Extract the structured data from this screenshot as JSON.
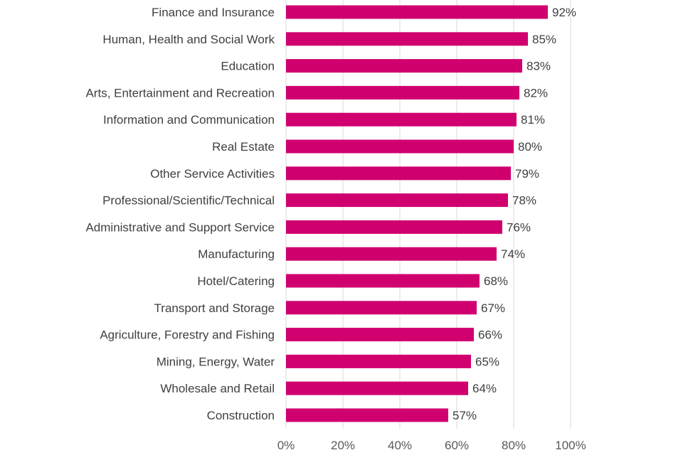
{
  "chart_data": {
    "type": "bar",
    "orientation": "horizontal",
    "categories": [
      "Finance and Insurance",
      "Human, Health and Social Work",
      "Education",
      "Arts, Entertainment and Recreation",
      "Information and Communication",
      "Real Estate",
      "Other Service Activities",
      "Professional/Scientific/Technical",
      "Administrative and Support Service",
      "Manufacturing",
      "Hotel/Catering",
      "Transport and Storage",
      "Agriculture, Forestry and Fishing",
      "Mining, Energy, Water",
      "Wholesale and Retail",
      "Construction"
    ],
    "values": [
      92,
      85,
      83,
      82,
      81,
      80,
      79,
      78,
      76,
      74,
      68,
      67,
      66,
      65,
      64,
      57
    ],
    "value_labels": [
      "92%",
      "85%",
      "83%",
      "82%",
      "81%",
      "80%",
      "79%",
      "78%",
      "76%",
      "74%",
      "68%",
      "67%",
      "66%",
      "65%",
      "64%",
      "57%"
    ],
    "x_ticks": [
      0,
      20,
      40,
      60,
      80,
      100
    ],
    "x_tick_labels": [
      "0%",
      "20%",
      "40%",
      "60%",
      "80%",
      "100%"
    ],
    "xlim": [
      0,
      100
    ],
    "title": "",
    "xlabel": "",
    "ylabel": "",
    "grid": "vertical",
    "legend": "none",
    "colors": {
      "bar": "#d0006f",
      "grid": "#d9d9d9",
      "text": "#404040"
    }
  }
}
